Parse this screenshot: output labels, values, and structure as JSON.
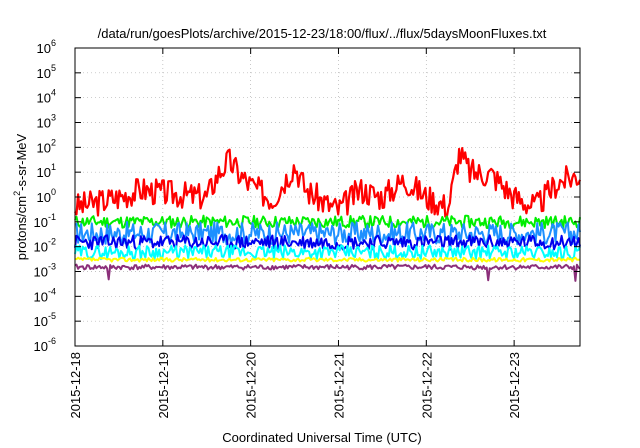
{
  "chart_data": {
    "type": "line",
    "title": "/data/run/goesPlots/archive/2015-12-23/18:00/flux/../flux/5daysMoonFluxes.txt",
    "xlabel": "Coordinated Universal Time (UTC)",
    "ylabel": "protons/cm²-s-sr-MeV",
    "yscale": "log",
    "ylim": [
      1e-06,
      1000000.0
    ],
    "y_ticks": [
      {
        "exp": "-6",
        "value": 1e-06
      },
      {
        "exp": "-5",
        "value": 1e-05
      },
      {
        "exp": "-4",
        "value": 0.0001
      },
      {
        "exp": "-3",
        "value": 0.001
      },
      {
        "exp": "-2",
        "value": 0.01
      },
      {
        "exp": "-1",
        "value": 0.1
      },
      {
        "exp": "0",
        "value": 1
      },
      {
        "exp": "1",
        "value": 10
      },
      {
        "exp": "2",
        "value": 100
      },
      {
        "exp": "3",
        "value": 1000
      },
      {
        "exp": "4",
        "value": 10000
      },
      {
        "exp": "5",
        "value": 100000
      },
      {
        "exp": "6",
        "value": 1000000
      }
    ],
    "xlim": [
      "2015-12-18",
      "2015-12-23T18:00"
    ],
    "x_ticks": [
      "2015-12-18",
      "2015-12-19",
      "2015-12-20",
      "2015-12-21",
      "2015-12-22",
      "2015-12-23"
    ],
    "grid": true,
    "series": [
      {
        "color": "#ff0000",
        "x": [
          "2015-12-18T00:00",
          "2015-12-18T06:00",
          "2015-12-18T12:00",
          "2015-12-18T18:00",
          "2015-12-19T00:00",
          "2015-12-19T06:00",
          "2015-12-19T12:00",
          "2015-12-19T15:00",
          "2015-12-19T18:00",
          "2015-12-19T21:00",
          "2015-12-20T00:00",
          "2015-12-20T06:00",
          "2015-12-20T12:00",
          "2015-12-20T15:00",
          "2015-12-20T21:00",
          "2015-12-21T00:00",
          "2015-12-21T06:00",
          "2015-12-21T12:00",
          "2015-12-21T18:00",
          "2015-12-22T00:00",
          "2015-12-22T06:00",
          "2015-12-22T09:00",
          "2015-12-22T12:00",
          "2015-12-22T18:00",
          "2015-12-23T00:00",
          "2015-12-23T06:00",
          "2015-12-23T12:00",
          "2015-12-23T18:00"
        ],
        "values": [
          0.4,
          0.6,
          1.0,
          2.0,
          1.5,
          1.2,
          1.0,
          8.0,
          30.0,
          8.0,
          3.0,
          0.8,
          20.0,
          2.0,
          0.5,
          0.3,
          2.0,
          1.0,
          5.0,
          1.0,
          0.4,
          60.0,
          10.0,
          8.0,
          1.0,
          0.4,
          4.0,
          8.0
        ]
      },
      {
        "color": "#00ee00",
        "x": [
          "2015-12-18T00:00",
          "2015-12-23T18:00"
        ],
        "values": [
          0.1,
          0.1
        ]
      },
      {
        "color": "#1e90ff",
        "x": [
          "2015-12-18T00:00",
          "2015-12-23T18:00"
        ],
        "values": [
          0.035,
          0.035
        ]
      },
      {
        "color": "#0000ee",
        "x": [
          "2015-12-18T00:00",
          "2015-12-23T18:00"
        ],
        "values": [
          0.015,
          0.015
        ]
      },
      {
        "color": "#00ffff",
        "x": [
          "2015-12-18T00:00",
          "2015-12-23T18:00"
        ],
        "values": [
          0.006,
          0.006
        ]
      },
      {
        "color": "#ffff00",
        "x": [
          "2015-12-18T00:00",
          "2015-12-23T18:00"
        ],
        "values": [
          0.003,
          0.003
        ]
      },
      {
        "color": "#8b2f7a",
        "x": [
          "2015-12-18T00:00",
          "2015-12-23T18:00"
        ],
        "values": [
          0.0015,
          0.0015
        ]
      }
    ]
  }
}
